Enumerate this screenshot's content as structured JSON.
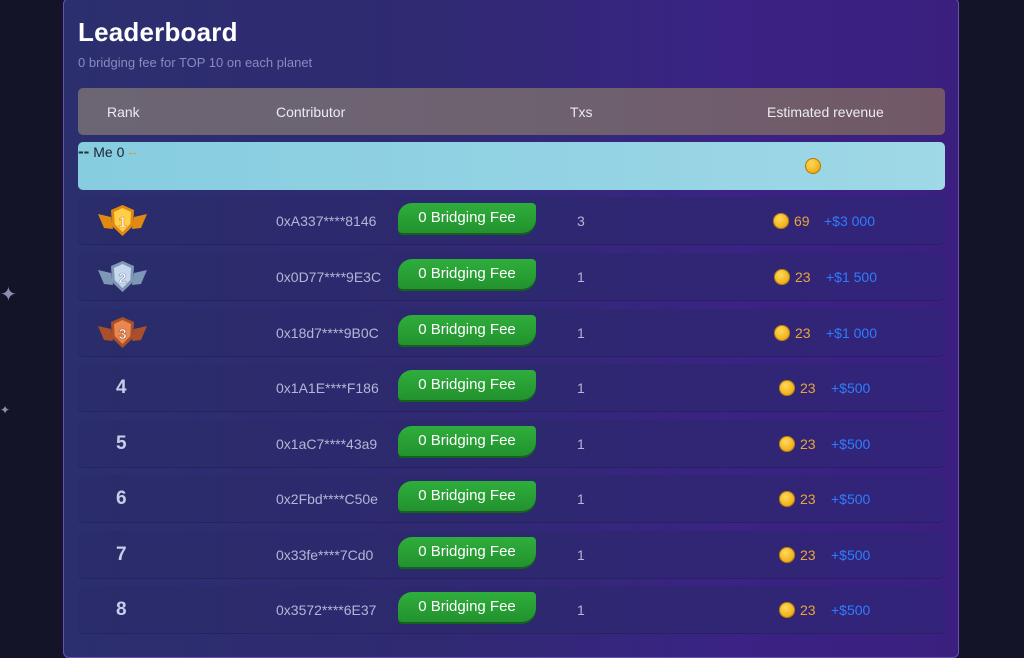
{
  "page": {
    "title": "Leaderboard",
    "subtitle": "0 bridging fee for TOP 10 on each planet"
  },
  "table": {
    "headers": {
      "rank": "Rank",
      "contributor": "Contributor",
      "txs": "Txs",
      "revenue": "Estimated revenue"
    },
    "me": {
      "rank": "--",
      "contributor": "Me",
      "txs": "0",
      "revenue": "--"
    },
    "badge_label": "0 Bridging Fee",
    "rows": [
      {
        "rank": "1",
        "address": "0xA337****8146",
        "txs": "3",
        "points": "69",
        "usd": "+$3 000"
      },
      {
        "rank": "2",
        "address": "0x0D77****9E3C",
        "txs": "1",
        "points": "23",
        "usd": "+$1 500"
      },
      {
        "rank": "3",
        "address": "0x18d7****9B0C",
        "txs": "1",
        "points": "23",
        "usd": "+$1 000"
      },
      {
        "rank": "4",
        "address": "0x1A1E****F186",
        "txs": "1",
        "points": "23",
        "usd": "+$500"
      },
      {
        "rank": "5",
        "address": "0x1aC7****43a9",
        "txs": "1",
        "points": "23",
        "usd": "+$500"
      },
      {
        "rank": "6",
        "address": "0x2Fbd****C50e",
        "txs": "1",
        "points": "23",
        "usd": "+$500"
      },
      {
        "rank": "7",
        "address": "0x33fe****7Cd0",
        "txs": "1",
        "points": "23",
        "usd": "+$500"
      },
      {
        "rank": "8",
        "address": "0x3572****6E37",
        "txs": "1",
        "points": "23",
        "usd": "+$500"
      }
    ]
  },
  "colors": {
    "accent_green": "#2fae3c",
    "gold": "#e8a63a",
    "usd_blue": "#2f7dff",
    "medal_gold": "#f5b21c",
    "medal_silver": "#9fb8d6",
    "medal_bronze": "#d06a3a"
  },
  "icons": {
    "coin": "coin-icon",
    "medal": "medal-icon",
    "sparkle": "sparkle-icon"
  }
}
